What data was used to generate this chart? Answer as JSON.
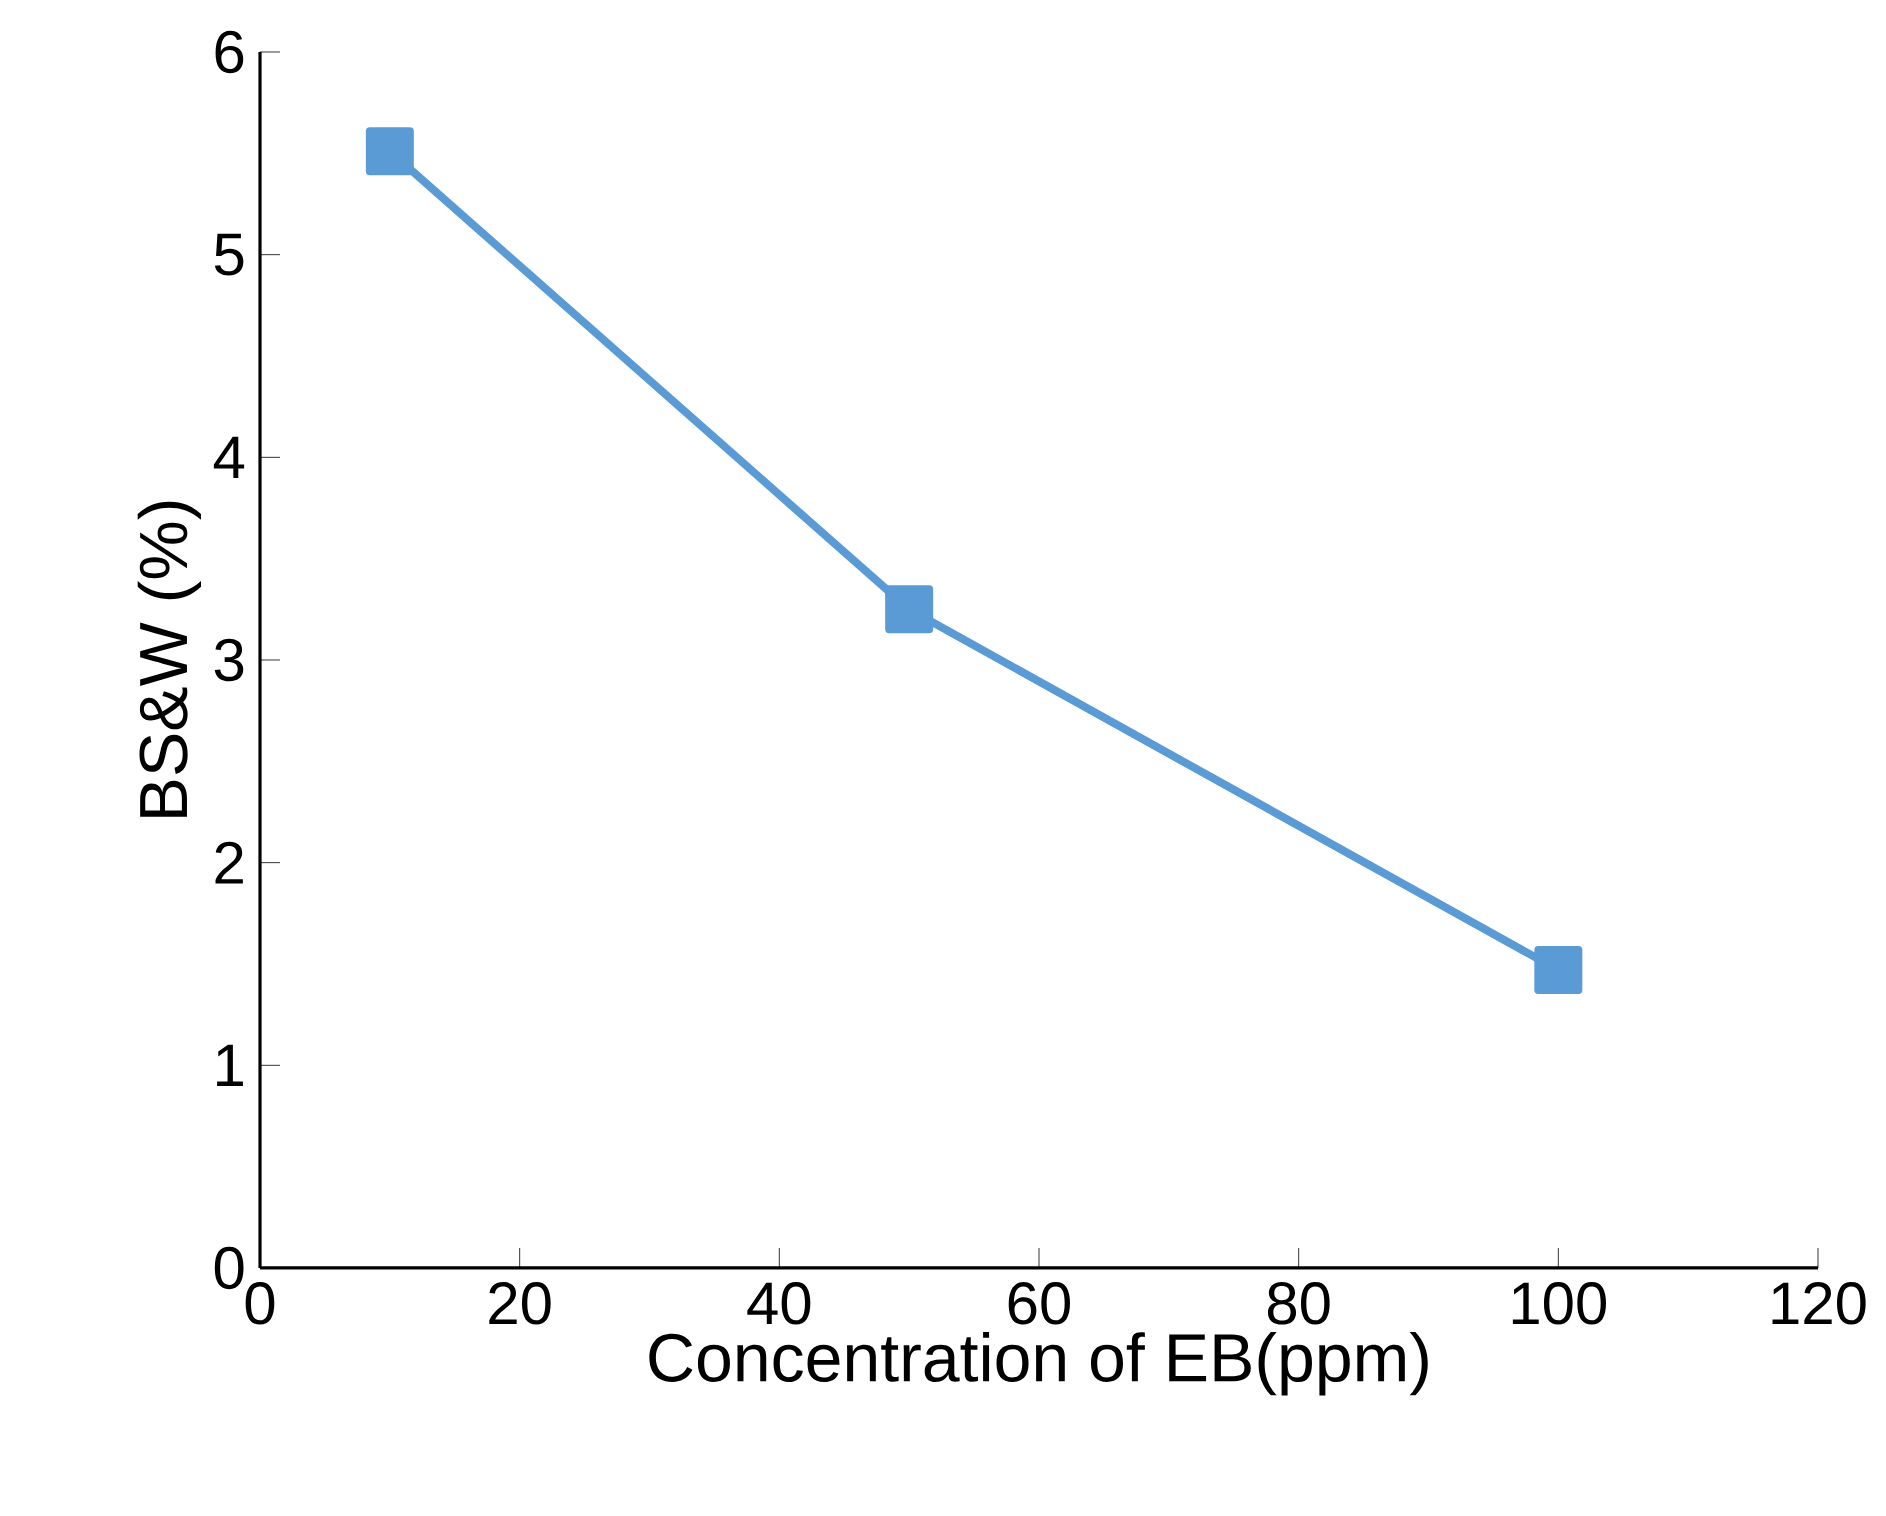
{
  "chart_data": {
    "type": "line",
    "xlabel": "Concentration of EB(ppm)",
    "ylabel": "BS&W (%)",
    "x": [
      10,
      50,
      100
    ],
    "series": [
      {
        "color": "#5b9bd5",
        "values": [
          5.51,
          3.25,
          1.47
        ]
      }
    ],
    "xlim": [
      0,
      120
    ],
    "xticks": [
      0,
      20,
      40,
      60,
      80,
      100,
      120
    ],
    "ylim": [
      0,
      6
    ],
    "yticks": [
      0,
      1,
      2,
      3,
      4,
      5,
      6
    ],
    "marker": "square",
    "line_style": "solid"
  }
}
